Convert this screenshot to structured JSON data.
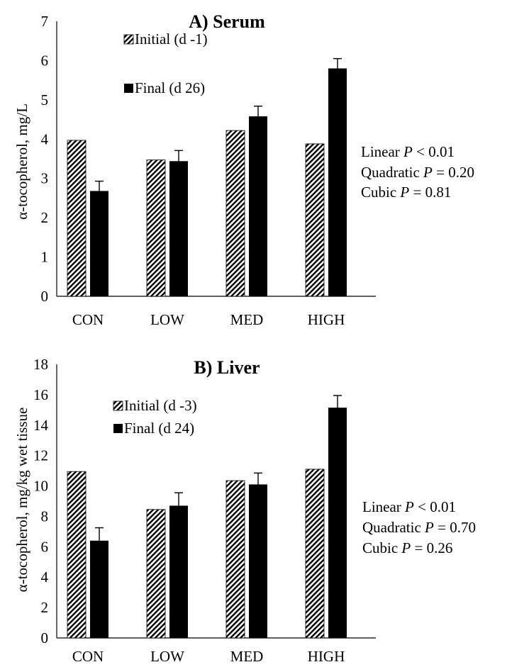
{
  "chart_data": [
    {
      "type": "bar",
      "title": "A) Serum",
      "ylabel": "α-tocopherol, mg/L",
      "xlabel": "",
      "categories": [
        "CON",
        "LOW",
        "MED",
        "HIGH"
      ],
      "ylim": [
        0,
        7
      ],
      "yticks": [
        "0",
        "1",
        "2",
        "3",
        "4",
        "5",
        "6",
        "7"
      ],
      "legend_position": "top-left",
      "grid": false,
      "series": [
        {
          "name": "Initial (d -1)",
          "pattern": "hatched",
          "values": [
            3.97,
            3.47,
            4.22,
            3.88
          ],
          "errors": [
            0,
            0,
            0,
            0
          ]
        },
        {
          "name": "Final (d 26)",
          "pattern": "solid",
          "color": "#000000",
          "values": [
            2.68,
            3.44,
            4.58,
            5.8
          ],
          "errors": [
            0.25,
            0.27,
            0.26,
            0.25
          ]
        }
      ],
      "stats": [
        {
          "prefix": "Linear ",
          "p": "P",
          "suffix": " < 0.01"
        },
        {
          "prefix": "Quadratic ",
          "p": "P",
          "suffix": " = 0.20"
        },
        {
          "prefix": "Cubic ",
          "p": "P",
          "suffix": " = 0.81"
        }
      ]
    },
    {
      "type": "bar",
      "title": "B) Liver",
      "ylabel": "α-tocopherol, mg/kg wet tissue",
      "xlabel": "",
      "categories": [
        "CON",
        "LOW",
        "MED",
        "HIGH"
      ],
      "ylim": [
        0,
        18
      ],
      "yticks": [
        "0",
        "2",
        "4",
        "6",
        "8",
        "10",
        "12",
        "14",
        "16",
        "18"
      ],
      "legend_position": "top-left",
      "grid": false,
      "series": [
        {
          "name": "Initial (d -3)",
          "pattern": "hatched",
          "values": [
            10.95,
            8.45,
            10.35,
            11.1
          ],
          "errors": [
            0,
            0,
            0,
            0
          ]
        },
        {
          "name": "Final (d 24)",
          "pattern": "solid",
          "color": "#000000",
          "values": [
            6.4,
            8.7,
            10.1,
            15.15
          ],
          "errors": [
            0.85,
            0.85,
            0.75,
            0.8
          ]
        }
      ],
      "stats": [
        {
          "prefix": "Linear ",
          "p": "P",
          "suffix": " < 0.01"
        },
        {
          "prefix": "Quadratic ",
          "p": "P",
          "suffix": " = 0.70"
        },
        {
          "prefix": "Cubic ",
          "p": "P",
          "suffix": " = 0.26"
        }
      ]
    }
  ]
}
